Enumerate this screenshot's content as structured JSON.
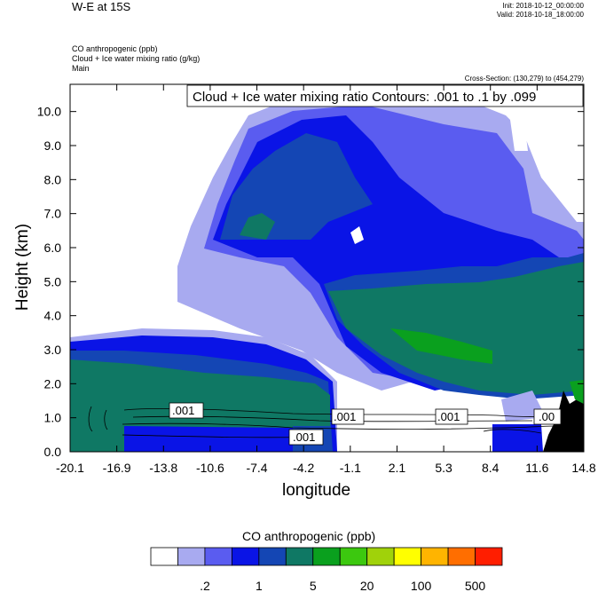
{
  "header": {
    "title": "W-E at 15S",
    "init": "Init: 2018-10-12_00:00:00",
    "valid": "Valid: 2018-10-18_18:00:00",
    "field1": "CO anthropogenic   (ppb)",
    "field2": "Cloud + Ice water mixing ratio   (g/kg)",
    "field3": "Main",
    "cross_section": "Cross-Section: (130,279) to (454,279)"
  },
  "chart_data": {
    "type": "contour",
    "xlabel": "longitude",
    "ylabel": "Height (km)",
    "x_ticks": [
      "-20.1",
      "-16.9",
      "-13.8",
      "-10.6",
      "-7.4",
      "-4.2",
      "-1.1",
      "2.1",
      "5.3",
      "8.4",
      "11.6",
      "14.8"
    ],
    "y_ticks": [
      "0.0",
      "1.0",
      "2.0",
      "3.0",
      "4.0",
      "5.0",
      "6.0",
      "7.0",
      "8.0",
      "9.0",
      "10.0"
    ],
    "xlim": [
      -20.1,
      14.8
    ],
    "ylim": [
      0,
      10.8
    ],
    "contour_info": "Cloud + Ice water mixing ratio Contours: .001 to .1 by .099",
    "contour_labels": [
      ".001",
      ".001",
      ".001",
      ".001",
      ".00"
    ],
    "legend_title": "CO anthropogenic  (ppb)",
    "colorbar_colors": [
      "#ffffff",
      "#a8aaf0",
      "#5a5cf0",
      "#0a14e6",
      "#1446b4",
      "#0f7864",
      "#0aa01e",
      "#3cc80f",
      "#a0d20a",
      "#ffff00",
      "#ffb400",
      "#ff6e00",
      "#ff1e00"
    ],
    "colorbar_labels": [
      ".2",
      "1",
      "5",
      "20",
      "100",
      "500"
    ]
  }
}
